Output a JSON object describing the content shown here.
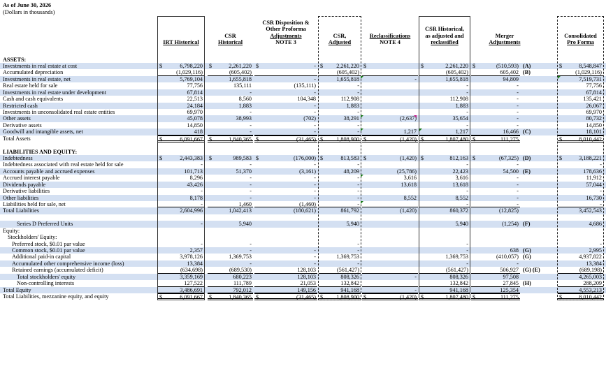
{
  "header": {
    "date_line": "As of June 30, 2026",
    "units_line": "(Dollars in thousands)"
  },
  "columns": [
    {
      "key": "irt",
      "lines": [
        "IRT Historical"
      ]
    },
    {
      "key": "csr",
      "lines": [
        "CSR",
        "Historical"
      ]
    },
    {
      "key": "disp",
      "lines": [
        "CSR Disposition &",
        "Other Proforma",
        "Adjustments",
        "NOTE 3"
      ]
    },
    {
      "key": "adj",
      "lines": [
        "CSR,",
        "Adjusted"
      ]
    },
    {
      "key": "recl",
      "lines": [
        "Reclassifications",
        "NOTE 4"
      ]
    },
    {
      "key": "csrh",
      "lines": [
        "CSR Historical,",
        "as adjusted and",
        "reclassified"
      ]
    },
    {
      "key": "merg",
      "lines": [
        "Merger",
        "Adjustments"
      ]
    },
    {
      "key": "cons",
      "lines": [
        "Consolidated",
        "Pro Forma"
      ]
    }
  ],
  "rows": [
    {
      "label": "ASSETS:",
      "style": "b",
      "values": []
    },
    {
      "label": "Investments in real estate at cost",
      "blue": true,
      "dollar": true,
      "values": [
        "6,798,220",
        "2,261,220",
        "-",
        "2,261,220",
        "",
        "2,261,220",
        "(510,593)",
        "8,548,847"
      ],
      "note": "(A)"
    },
    {
      "label": "Accumulated depreciation",
      "values": [
        "(1,029,116)",
        "(605,402)",
        "",
        "(605,402)",
        "",
        "(605,402)",
        "605,402",
        "(1,029,116)"
      ],
      "note": "(B)",
      "underline": true
    },
    {
      "label": "Investments in real estate, net",
      "blue": true,
      "values": [
        "5,769,104",
        "1,655,818",
        "-",
        "1,655,818",
        "-",
        "1,655,818",
        "94,809",
        "7,519,731"
      ]
    },
    {
      "label": "Real estate held for sale",
      "values": [
        "77,756",
        "135,111",
        "(135,111)",
        "-",
        "",
        "-",
        "-",
        "77,756"
      ]
    },
    {
      "label": "Investments in real estate under development",
      "blue": true,
      "values": [
        "67,814",
        "-",
        "-",
        "-",
        "",
        "-",
        "-",
        "67,814"
      ]
    },
    {
      "label": "Cash and cash equivalents",
      "values": [
        "22,513",
        "8,560",
        "104,348",
        "112,908",
        "",
        "112,908",
        "-",
        "135,421"
      ]
    },
    {
      "label": "Restricted cash",
      "blue": true,
      "values": [
        "24,184",
        "1,883",
        "-",
        "1,883",
        "",
        "1,883",
        "-",
        "26,067"
      ]
    },
    {
      "label": "Investments in unconsolidated real estate entities",
      "values": [
        "69,970",
        "-",
        "-",
        "-",
        "",
        "-",
        "-",
        "69,970"
      ]
    },
    {
      "label": "Other assets",
      "blue": true,
      "values": [
        "45,078",
        "38,993",
        "(702)",
        "38,291",
        "(2,637)",
        "35,654",
        "-",
        "80,732"
      ]
    },
    {
      "label": "Derivative assets",
      "values": [
        "14,850",
        "-",
        "-",
        "-",
        "",
        "-",
        "-",
        "14,850"
      ]
    },
    {
      "label": "Goodwill and intangible assets, net",
      "blue": true,
      "values": [
        "418",
        "-",
        "-",
        "-",
        "1,217",
        "1,217",
        "16,466",
        "18,101"
      ],
      "note": "(C)",
      "underline": true
    },
    {
      "label": "Total Assets",
      "dollar": true,
      "total": true,
      "values": [
        "6,091,667",
        "1,840,365",
        "(31,465)",
        "1,808,900",
        "(1,420)",
        "1,807,480",
        "111,275",
        "8,010,442"
      ]
    },
    {
      "label": "",
      "values": []
    },
    {
      "label": "LIABILITIES AND EQUITY:",
      "style": "b",
      "values": []
    },
    {
      "label": "Indebtedness",
      "blue": true,
      "dollar": true,
      "values": [
        "2,443,383",
        "989,583",
        "(176,000)",
        "813,583",
        "(1,420)",
        "812,163",
        "(67,325)",
        "3,188,221"
      ],
      "note": "(D)"
    },
    {
      "label": "Indebtedness associated with real estate held for sale",
      "values": [
        "-",
        "-",
        "-",
        "-",
        "",
        "-",
        "-",
        "-"
      ]
    },
    {
      "label": "Accounts payable and accrued expenses",
      "blue": true,
      "values": [
        "101,713",
        "51,370",
        "(3,161)",
        "48,209",
        "(25,786)",
        "22,423",
        "54,500",
        "178,636"
      ],
      "note": "(E)"
    },
    {
      "label": "Accrued interest payable",
      "values": [
        "8,296",
        "-",
        "-",
        "-",
        "3,616",
        "3,616",
        "-",
        "11,912"
      ]
    },
    {
      "label": "Dividends payable",
      "blue": true,
      "values": [
        "43,426",
        "-",
        "-",
        "-",
        "13,618",
        "13,618",
        "-",
        "57,044"
      ]
    },
    {
      "label": "Derivative liabilities",
      "values": [
        "-",
        "-",
        "-",
        "-",
        "",
        "-",
        "-",
        "-"
      ]
    },
    {
      "label": "Other liabilities",
      "blue": true,
      "values": [
        "8,178",
        "-",
        "-",
        "-",
        "8,552",
        "8,552",
        "-",
        "16,730"
      ]
    },
    {
      "label": "Liabilities held for sale, net",
      "values": [
        "-",
        "1,460",
        "(1,460)",
        "-",
        "",
        "-",
        "-",
        "-"
      ],
      "underline": true
    },
    {
      "label": "Total Liabilities",
      "blue": true,
      "values": [
        "2,604,996",
        "1,042,413",
        "(180,621)",
        "861,792",
        "(1,420)",
        "860,372",
        "(12,825)",
        "3,452,543"
      ]
    },
    {
      "label": "",
      "values": []
    },
    {
      "label": "Series D Preferred Units",
      "style": "i3",
      "blue": true,
      "values": [
        "-",
        "5,940",
        "",
        "5,940",
        "",
        "5,940",
        "(1,254)",
        "4,686"
      ],
      "note": "(F)"
    },
    {
      "label": "Equity:",
      "values": []
    },
    {
      "label": "Stockholders' Equity:",
      "style": "i1",
      "values": []
    },
    {
      "label": "Preferred stock, $0.01 par value",
      "style": "i2",
      "values": [
        "-",
        "-",
        "",
        "-",
        "",
        "-",
        "",
        "-"
      ]
    },
    {
      "label": "Common stock, $0.01 par value",
      "style": "i2",
      "blue": true,
      "values": [
        "2,357",
        "-",
        "-",
        "-",
        "",
        "-",
        "638",
        "2,995"
      ],
      "note": "(G)"
    },
    {
      "label": "Additional paid-in capital",
      "style": "i2",
      "values": [
        "3,978,126",
        "1,369,753",
        "-",
        "1,369,753",
        "",
        "1,369,753",
        "(410,057)",
        "4,937,822"
      ],
      "note": "(G)"
    },
    {
      "label": "Accumulated other comprehensive income (loss)",
      "style": "i2",
      "blue": true,
      "values": [
        "13,384",
        "-",
        "-",
        "-",
        "",
        "-",
        "-",
        "13,384"
      ]
    },
    {
      "label": "Retained earnings (accumulated deficit)",
      "style": "i2",
      "values": [
        "(634,698)",
        "(689,530)",
        "128,103",
        "(561,427)",
        "",
        "(561,427)",
        "506,927",
        "(689,198)"
      ],
      "note": "(G) (E)",
      "underline": true
    },
    {
      "label": "Total stockholders' equity",
      "style": "i3",
      "blue": true,
      "values": [
        "3,359,169",
        "680,223",
        "128,103",
        "808,326",
        "-",
        "808,326",
        "97,508",
        "4,265,003"
      ]
    },
    {
      "label": "Non-controlling interests",
      "style": "i3",
      "values": [
        "127,522",
        "111,789",
        "21,053",
        "132,842",
        "",
        "132,842",
        "27,845",
        "288,209"
      ],
      "note": "(H)",
      "underline": true
    },
    {
      "label": "Total Equity",
      "blue": true,
      "values": [
        "3,486,691",
        "792,012",
        "149,156",
        "941,168",
        "-",
        "941,168",
        "125,354",
        "4,553,213"
      ],
      "underline": true
    },
    {
      "label": "Total Liabilities, mezzanine equity, and equity",
      "dollar": true,
      "total": true,
      "values": [
        "6,091,667",
        "1,840,365",
        "(31,465)",
        "1,808,900",
        "(1,420)",
        "1,807,480",
        "111,275",
        "8,010,442"
      ]
    }
  ]
}
